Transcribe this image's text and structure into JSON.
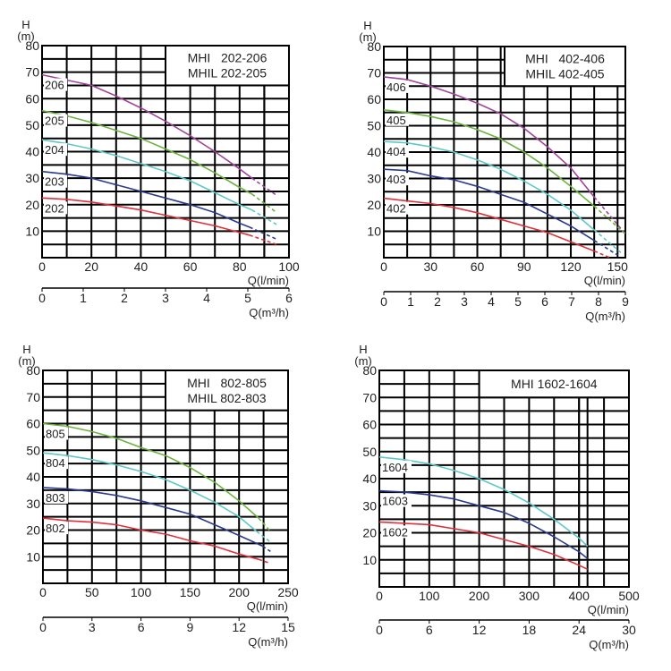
{
  "chart_data": [
    {
      "type": "line",
      "title": [
        "MHI   202-206",
        "MHIL 202-205"
      ],
      "ylabel": [
        "H",
        "(m)"
      ],
      "xlabel": "Q(l/min)",
      "x2label": "Q(m³/h)",
      "ylim": [
        0,
        80
      ],
      "xlim": [
        0,
        100
      ],
      "x2lim": [
        0,
        6
      ],
      "yticks": [
        "10",
        "20",
        "30",
        "40",
        "50",
        "60",
        "70",
        "80"
      ],
      "xticks": [
        "0",
        "20",
        "40",
        "60",
        "80",
        "100"
      ],
      "x2ticks": [
        "0",
        "1",
        "2",
        "3",
        "4",
        "5",
        "6"
      ],
      "grid": true,
      "legend": "top-right",
      "series": [
        {
          "name": "206",
          "color": "#a0449a",
          "x": [
            0,
            10,
            20,
            30,
            40,
            50,
            60,
            70,
            80,
            85
          ],
          "y": [
            69,
            67,
            65,
            61,
            56.5,
            51.5,
            46,
            40,
            33.5,
            30
          ],
          "dashed_x": [
            85,
            95
          ],
          "dashed_y": [
            30,
            23.5
          ]
        },
        {
          "name": "205",
          "color": "#6cb33f",
          "x": [
            0,
            10,
            20,
            30,
            40,
            50,
            60,
            70,
            80,
            85
          ],
          "y": [
            55.5,
            53.5,
            51,
            48,
            45,
            41,
            37,
            32,
            26.5,
            24
          ],
          "dashed_x": [
            85,
            95
          ],
          "dashed_y": [
            24,
            17
          ]
        },
        {
          "name": "204",
          "color": "#5fc8c8",
          "x": [
            0,
            10,
            20,
            30,
            40,
            50,
            60,
            70,
            80,
            85
          ],
          "y": [
            44.5,
            43,
            41,
            38.5,
            35.5,
            32.5,
            29,
            24.5,
            20,
            18
          ],
          "dashed_x": [
            85,
            95
          ],
          "dashed_y": [
            18,
            12.5
          ]
        },
        {
          "name": "203",
          "color": "#2a3a8c",
          "x": [
            0,
            10,
            20,
            30,
            40,
            50,
            60,
            70,
            80,
            84
          ],
          "y": [
            32.5,
            31.5,
            30,
            27.5,
            25,
            22.5,
            20,
            17,
            13,
            11.5
          ],
          "dashed_x": [
            84,
            95
          ],
          "dashed_y": [
            11.5,
            7
          ]
        },
        {
          "name": "202",
          "color": "#e0303a",
          "x": [
            0,
            10,
            20,
            30,
            40,
            50,
            60,
            70,
            80,
            84
          ],
          "y": [
            22.5,
            22,
            21,
            19.5,
            18,
            16,
            14,
            12,
            9.5,
            8.5
          ],
          "dashed_x": [
            84,
            95
          ],
          "dashed_y": [
            8.5,
            5
          ]
        }
      ]
    },
    {
      "type": "line",
      "title": [
        "MHI   402-406",
        "MHIL 402-405"
      ],
      "ylabel": [
        "H",
        "(m)"
      ],
      "xlabel": "Q(l/min)",
      "x2label": "Q(m³/h)",
      "ylim": [
        0,
        80
      ],
      "xlim": [
        0,
        155
      ],
      "x2lim": [
        0,
        9
      ],
      "yticks": [
        "10",
        "20",
        "30",
        "40",
        "50",
        "60",
        "70",
        "80"
      ],
      "xticks": [
        "0",
        "30",
        "60",
        "90",
        "120",
        "150"
      ],
      "x2ticks": [
        "0",
        "1",
        "2",
        "3",
        "4",
        "5",
        "6",
        "7",
        "8",
        "9"
      ],
      "grid": true,
      "legend": "top-right",
      "series": [
        {
          "name": "406",
          "color": "#a0449a",
          "x": [
            0,
            15,
            30,
            45,
            60,
            75,
            90,
            105,
            120,
            135
          ],
          "y": [
            68.5,
            67.5,
            65,
            62,
            58.5,
            54.5,
            49,
            42,
            34,
            23
          ],
          "dashed_x": [
            135,
            155
          ],
          "dashed_y": [
            23,
            9
          ]
        },
        {
          "name": "405",
          "color": "#6cb33f",
          "x": [
            0,
            15,
            30,
            45,
            60,
            75,
            90,
            105,
            120,
            135
          ],
          "y": [
            56,
            55,
            53.5,
            51.5,
            48.5,
            45,
            40,
            34,
            27,
            19.5
          ],
          "dashed_x": [
            135,
            155
          ],
          "dashed_y": [
            19.5,
            9
          ]
        },
        {
          "name": "404",
          "color": "#5fc8c8",
          "x": [
            0,
            15,
            30,
            45,
            60,
            75,
            90,
            105,
            120,
            135
          ],
          "y": [
            44,
            43.5,
            42,
            40,
            37,
            33.5,
            29,
            24,
            18,
            10.5
          ],
          "dashed_x": [
            135,
            153
          ],
          "dashed_y": [
            10.5,
            1.5
          ]
        },
        {
          "name": "403",
          "color": "#2a3a8c",
          "x": [
            0,
            15,
            30,
            45,
            60,
            75,
            90,
            105,
            120,
            135
          ],
          "y": [
            33.5,
            33,
            31,
            29.5,
            27,
            24,
            21,
            16.5,
            12,
            6.5
          ],
          "dashed_x": [
            135,
            150
          ],
          "dashed_y": [
            6.5,
            1
          ]
        },
        {
          "name": "402",
          "color": "#e0303a",
          "x": [
            0,
            15,
            30,
            45,
            60,
            75,
            90,
            105,
            120,
            135
          ],
          "y": [
            22.5,
            21.5,
            20.5,
            19,
            17,
            14.5,
            12,
            9.5,
            6,
            2.5
          ],
          "dashed_x": [
            135,
            145
          ],
          "dashed_y": [
            2.5,
            0
          ]
        }
      ]
    },
    {
      "type": "line",
      "title": [
        "MHI   802-805",
        "MHIL 802-803"
      ],
      "ylabel": [
        "H",
        "(m)"
      ],
      "xlabel": "Q(l/min)",
      "x2label": "Q(m³/h)",
      "ylim": [
        0,
        80
      ],
      "xlim": [
        0,
        250
      ],
      "x2lim": [
        0,
        15
      ],
      "yticks": [
        "10",
        "20",
        "30",
        "40",
        "50",
        "60",
        "70",
        "80"
      ],
      "xticks": [
        "0",
        "50",
        "100",
        "150",
        "200",
        "250"
      ],
      "x2ticks": [
        "0",
        "3",
        "6",
        "9",
        "12",
        "15"
      ],
      "grid": true,
      "legend": "top-right",
      "series": [
        {
          "name": "805",
          "color": "#6cb33f",
          "x": [
            0,
            25,
            50,
            75,
            100,
            125,
            150,
            175,
            200,
            220
          ],
          "y": [
            60,
            59,
            57,
            54.5,
            51,
            48,
            43.5,
            38,
            31,
            24.5
          ],
          "dashed_x": [
            220,
            232
          ],
          "dashed_y": [
            24.5,
            19.5
          ]
        },
        {
          "name": "804",
          "color": "#5fc8c8",
          "x": [
            0,
            25,
            50,
            75,
            100,
            125,
            150,
            175,
            200,
            218
          ],
          "y": [
            49,
            48,
            46.5,
            44.5,
            42,
            39,
            35,
            30.5,
            25,
            19.5
          ],
          "dashed_x": [
            218,
            232
          ],
          "dashed_y": [
            19.5,
            15.5
          ]
        },
        {
          "name": "803",
          "color": "#2a3a8c",
          "x": [
            0,
            25,
            50,
            75,
            100,
            125,
            150,
            175,
            200,
            224
          ],
          "y": [
            36,
            35.5,
            34.5,
            33,
            31,
            28.5,
            26,
            22,
            18,
            14
          ],
          "dashed_x": [
            224,
            232
          ],
          "dashed_y": [
            14,
            12
          ]
        },
        {
          "name": "802",
          "color": "#e0303a",
          "x": [
            0,
            25,
            50,
            75,
            100,
            125,
            150,
            175,
            200,
            220
          ],
          "y": [
            24.5,
            23.5,
            23,
            22,
            20,
            18.5,
            16,
            14,
            11,
            9
          ],
          "dashed_x": [
            220,
            232
          ],
          "dashed_y": [
            9,
            7.5
          ]
        }
      ]
    },
    {
      "type": "line",
      "title": [
        "MHI 1602-1604"
      ],
      "ylabel": [
        "H",
        "(m)"
      ],
      "xlabel": "Q(l/min)",
      "x2label": "Q(m³/h)",
      "ylim": [
        0,
        80
      ],
      "xlim": [
        0,
        500
      ],
      "x2lim": [
        0,
        30
      ],
      "yticks": [
        "10",
        "20",
        "30",
        "40",
        "50",
        "60",
        "70",
        "80"
      ],
      "xticks": [
        "0",
        "100",
        "200",
        "300",
        "400",
        "500"
      ],
      "x2ticks": [
        "0",
        "6",
        "12",
        "18",
        "24",
        "30"
      ],
      "grid": true,
      "legend": "top-right",
      "series": [
        {
          "name": "1604",
          "color": "#5fc8c8",
          "x": [
            0,
            50,
            100,
            150,
            200,
            250,
            300,
            350,
            400,
            417
          ],
          "y": [
            48,
            47,
            45.5,
            43,
            40,
            36,
            31,
            25,
            18,
            15
          ],
          "dashed_x": [],
          "dashed_y": []
        },
        {
          "name": "1603",
          "color": "#2a3a8c",
          "x": [
            0,
            50,
            100,
            150,
            200,
            250,
            300,
            350,
            400,
            417
          ],
          "y": [
            35.5,
            35,
            34,
            32.5,
            30,
            27.5,
            23.5,
            18.5,
            13,
            10.5
          ],
          "dashed_x": [],
          "dashed_y": []
        },
        {
          "name": "1602",
          "color": "#e0303a",
          "x": [
            0,
            50,
            100,
            150,
            200,
            250,
            300,
            350,
            400,
            417
          ],
          "y": [
            24,
            23.5,
            23,
            21.5,
            20,
            17.5,
            15,
            12,
            8,
            6.5
          ],
          "dashed_x": [],
          "dashed_y": []
        }
      ]
    }
  ]
}
